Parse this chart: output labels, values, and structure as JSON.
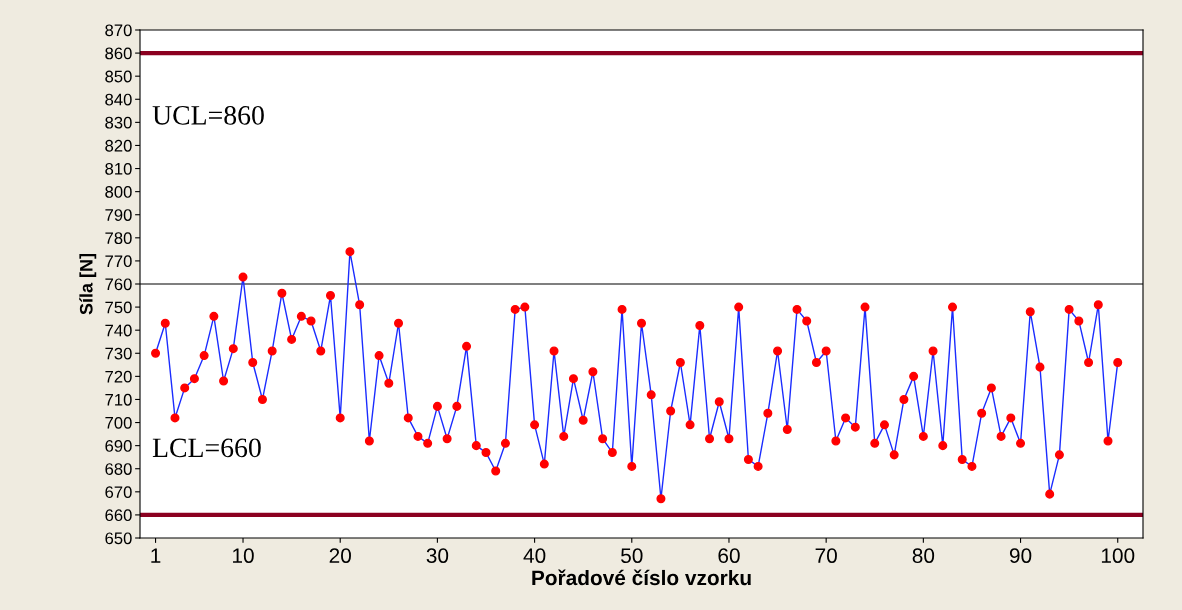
{
  "chart_data": {
    "type": "line",
    "xlabel": "Pořadové číslo vzorku",
    "ylabel": "Síla [N]",
    "x": [
      1,
      2,
      3,
      4,
      5,
      6,
      7,
      8,
      9,
      10,
      11,
      12,
      13,
      14,
      15,
      16,
      17,
      18,
      19,
      20,
      21,
      22,
      23,
      24,
      25,
      26,
      27,
      28,
      29,
      30,
      31,
      32,
      33,
      34,
      35,
      36,
      37,
      38,
      39,
      40,
      41,
      42,
      43,
      44,
      45,
      46,
      47,
      48,
      49,
      50,
      51,
      52,
      53,
      54,
      55,
      56,
      57,
      58,
      59,
      60,
      61,
      62,
      63,
      64,
      65,
      66,
      67,
      68,
      69,
      70,
      71,
      72,
      73,
      74,
      75,
      76,
      77,
      78,
      79,
      80,
      81,
      82,
      83,
      84,
      85,
      86,
      87,
      88,
      89,
      90,
      91,
      92,
      93,
      94,
      95,
      96,
      97,
      98,
      99,
      100
    ],
    "series": [
      {
        "color": "#1a2cff",
        "values": [
          730,
          743,
          702,
          715,
          719,
          729,
          746,
          718,
          732,
          763,
          726,
          710,
          731,
          756,
          736,
          746,
          744,
          731,
          755,
          702,
          774,
          751,
          692,
          729,
          717,
          743,
          702,
          694,
          691,
          707,
          693,
          707,
          733,
          690,
          687,
          679,
          691,
          749,
          750,
          699,
          682,
          731,
          694,
          719,
          701,
          722,
          693,
          687,
          749,
          681,
          743,
          712,
          667,
          705,
          726,
          699,
          742,
          693,
          709,
          693,
          750,
          684,
          681,
          704,
          731,
          697,
          749,
          744,
          726,
          731,
          692,
          702,
          698,
          750,
          691,
          699,
          686,
          710,
          720,
          694,
          731,
          690,
          750,
          684,
          681,
          704,
          715,
          694,
          702,
          691,
          748,
          724,
          669,
          686,
          749,
          744,
          726,
          751,
          692,
          726
        ]
      }
    ],
    "marker": "circle",
    "line_style": "solid",
    "xlim": [
      -0.6,
      102.6
    ],
    "ylim": [
      650,
      870
    ],
    "xticks": [
      1,
      10,
      20,
      30,
      40,
      50,
      60,
      70,
      80,
      90,
      100
    ],
    "yticks": [
      650,
      660,
      670,
      680,
      690,
      700,
      710,
      720,
      730,
      740,
      750,
      760,
      770,
      780,
      790,
      800,
      810,
      820,
      830,
      840,
      850,
      860,
      870
    ],
    "ref_lines": [
      {
        "axis": "y",
        "value": 860,
        "label": "UCL=860",
        "color": "#8b0020"
      },
      {
        "axis": "y",
        "value": 760,
        "color": "#000000"
      },
      {
        "axis": "y",
        "value": 660,
        "label": "LCL=660",
        "color": "#8b0020"
      }
    ],
    "grid": false,
    "legend": false
  }
}
